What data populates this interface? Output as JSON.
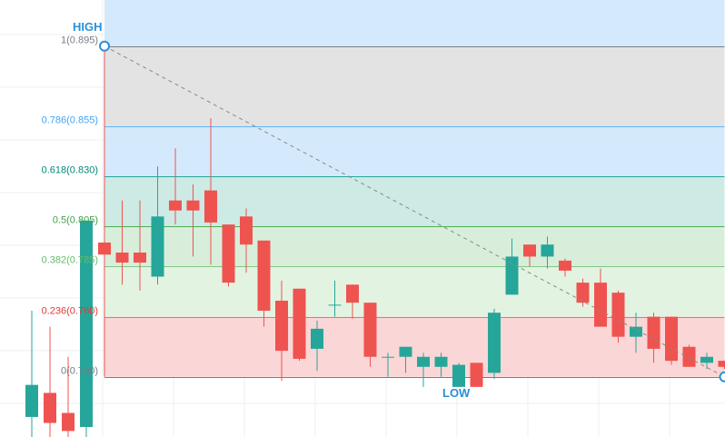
{
  "chart_data": {
    "type": "candlestick",
    "colors": {
      "up": "#26a69a",
      "down": "#ef5350",
      "grid": "#eceff2",
      "high_low_text": "#2a8fd9",
      "trend_line": "#888888",
      "handle": "#2a8fd9"
    },
    "ylim": [
      0.7,
      0.918
    ],
    "fib_retracement": {
      "high_label": "HIGH",
      "low_label": "LOW",
      "anchor_start_candle": 0,
      "anchor_end_candle": 35,
      "levels": [
        {
          "label": "1(0.895)",
          "value": 0.895,
          "line_color": "#787b86",
          "text_color": "#787b86",
          "fill": "#e3e3e3"
        },
        {
          "label": "0.786(0.855)",
          "value": 0.855,
          "line_color": "#64b5f6",
          "text_color": "#42a5f5",
          "fill": "#d4e9fb"
        },
        {
          "label": "0.618(0.830)",
          "value": 0.83,
          "line_color": "#26a69a",
          "text_color": "#00897b",
          "fill": "#cdeae5"
        },
        {
          "label": "0.5(0.805)",
          "value": 0.805,
          "line_color": "#4caf50",
          "text_color": "#43a047",
          "fill": "#d8eedb"
        },
        {
          "label": "0.382(0.785)",
          "value": 0.785,
          "line_color": "#81c784",
          "text_color": "#66bb6a",
          "fill": "#e3f3e1"
        },
        {
          "label": "0.236(0.760)",
          "value": 0.76,
          "line_color": "#e57373",
          "text_color": "#e53935",
          "fill": "#fbd6d6"
        },
        {
          "label": "0(0.730)",
          "value": 0.73,
          "line_color": "#787b86",
          "text_color": "#787b86",
          "fill": null
        }
      ],
      "above_high_fill": "#d4e9fb"
    },
    "pre_candles": [
      {
        "o": 0.71,
        "h": 0.763,
        "l": 0.69,
        "c": 0.726
      },
      {
        "o": 0.722,
        "h": 0.755,
        "l": 0.7,
        "c": 0.707
      },
      {
        "o": 0.712,
        "h": 0.74,
        "l": 0.69,
        "c": 0.703
      },
      {
        "o": 0.705,
        "h": 0.808,
        "l": 0.69,
        "c": 0.808
      }
    ],
    "candles": [
      {
        "o": 0.797,
        "h": 0.803,
        "l": 0.79,
        "c": 0.791
      },
      {
        "o": 0.792,
        "h": 0.818,
        "l": 0.776,
        "c": 0.787
      },
      {
        "o": 0.792,
        "h": 0.818,
        "l": 0.773,
        "c": 0.787
      },
      {
        "o": 0.78,
        "h": 0.835,
        "l": 0.776,
        "c": 0.81
      },
      {
        "o": 0.818,
        "h": 0.844,
        "l": 0.806,
        "c": 0.813
      },
      {
        "o": 0.818,
        "h": 0.826,
        "l": 0.79,
        "c": 0.813
      },
      {
        "o": 0.823,
        "h": 0.859,
        "l": 0.786,
        "c": 0.807
      },
      {
        "o": 0.806,
        "h": 0.806,
        "l": 0.775,
        "c": 0.777
      },
      {
        "o": 0.81,
        "h": 0.814,
        "l": 0.782,
        "c": 0.796
      },
      {
        "o": 0.798,
        "h": 0.798,
        "l": 0.755,
        "c": 0.763
      },
      {
        "o": 0.768,
        "h": 0.778,
        "l": 0.728,
        "c": 0.743
      },
      {
        "o": 0.774,
        "h": 0.774,
        "l": 0.738,
        "c": 0.739
      },
      {
        "o": 0.744,
        "h": 0.758,
        "l": 0.733,
        "c": 0.754
      },
      {
        "o": 0.766,
        "h": 0.778,
        "l": 0.76,
        "c": 0.766
      },
      {
        "o": 0.776,
        "h": 0.776,
        "l": 0.759,
        "c": 0.767
      },
      {
        "o": 0.767,
        "h": 0.767,
        "l": 0.735,
        "c": 0.74
      },
      {
        "o": 0.74,
        "h": 0.742,
        "l": 0.73,
        "c": 0.74
      },
      {
        "o": 0.74,
        "h": 0.745,
        "l": 0.732,
        "c": 0.745
      },
      {
        "o": 0.735,
        "h": 0.742,
        "l": 0.725,
        "c": 0.74
      },
      {
        "o": 0.735,
        "h": 0.742,
        "l": 0.73,
        "c": 0.74
      },
      {
        "o": 0.725,
        "h": 0.737,
        "l": 0.725,
        "c": 0.736
      },
      {
        "o": 0.737,
        "h": 0.737,
        "l": 0.725,
        "c": 0.725
      },
      {
        "o": 0.732,
        "h": 0.764,
        "l": 0.729,
        "c": 0.762
      },
      {
        "o": 0.771,
        "h": 0.799,
        "l": 0.771,
        "c": 0.79
      },
      {
        "o": 0.796,
        "h": 0.796,
        "l": 0.785,
        "c": 0.79
      },
      {
        "o": 0.79,
        "h": 0.8,
        "l": 0.784,
        "c": 0.796
      },
      {
        "o": 0.788,
        "h": 0.789,
        "l": 0.78,
        "c": 0.783
      },
      {
        "o": 0.777,
        "h": 0.779,
        "l": 0.765,
        "c": 0.767
      },
      {
        "o": 0.777,
        "h": 0.784,
        "l": 0.755,
        "c": 0.755
      },
      {
        "o": 0.772,
        "h": 0.773,
        "l": 0.747,
        "c": 0.75
      },
      {
        "o": 0.75,
        "h": 0.762,
        "l": 0.742,
        "c": 0.755
      },
      {
        "o": 0.76,
        "h": 0.762,
        "l": 0.737,
        "c": 0.744
      },
      {
        "o": 0.76,
        "h": 0.76,
        "l": 0.736,
        "c": 0.738
      },
      {
        "o": 0.745,
        "h": 0.746,
        "l": 0.735,
        "c": 0.735
      },
      {
        "o": 0.737,
        "h": 0.742,
        "l": 0.734,
        "c": 0.74
      },
      {
        "o": 0.738,
        "h": 0.738,
        "l": 0.734,
        "c": 0.735
      }
    ]
  }
}
